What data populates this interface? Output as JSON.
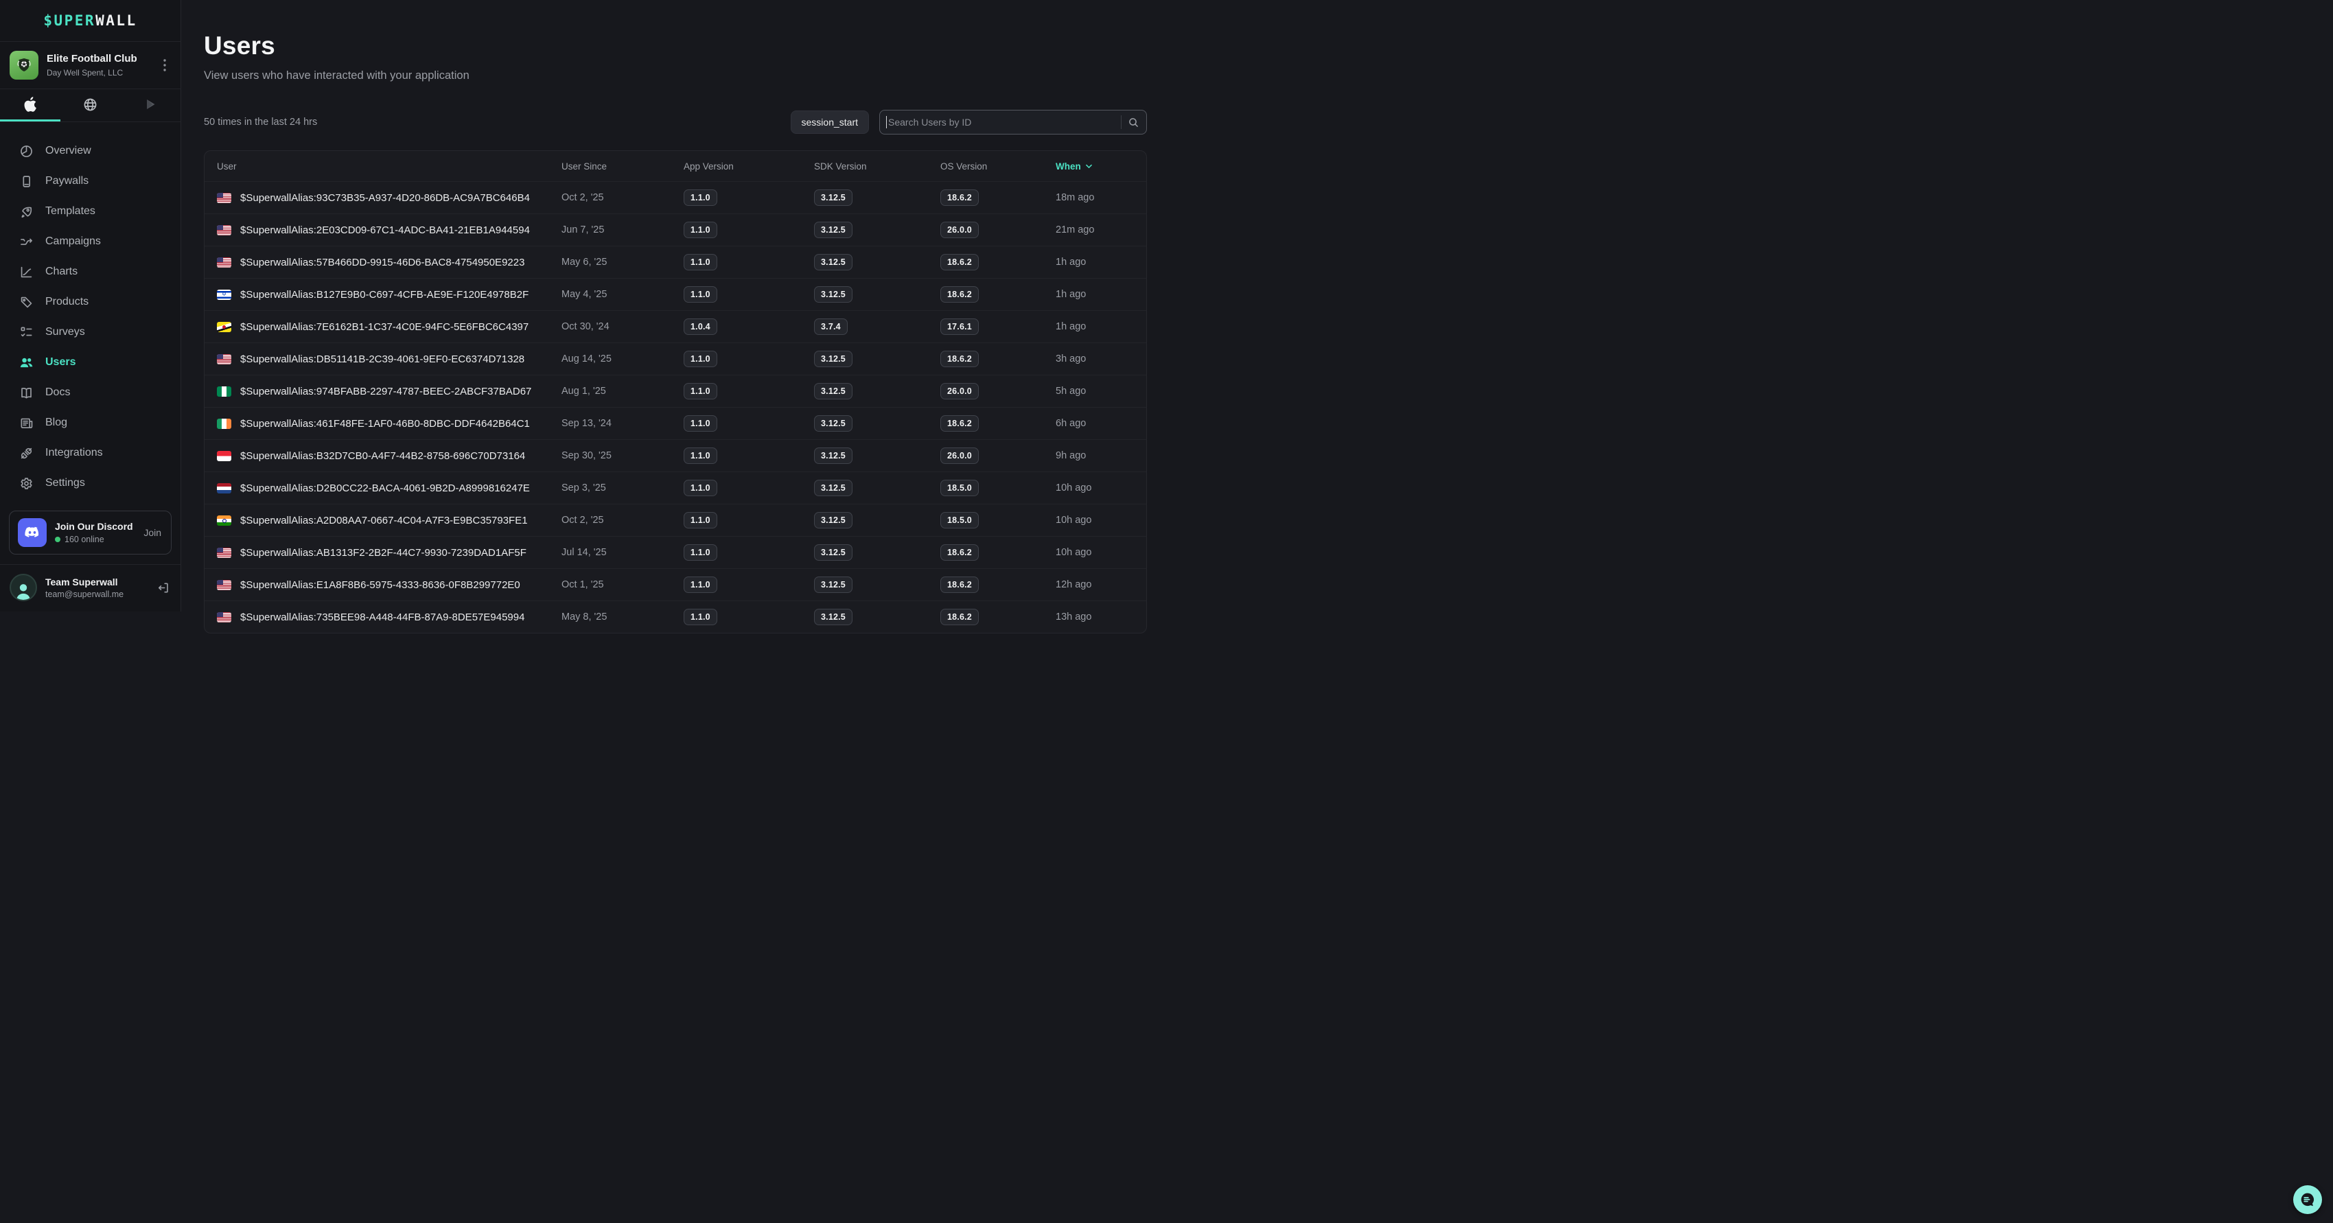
{
  "colors": {
    "accent": "#4be1c3",
    "discord": "#5865f2",
    "online_green": "#3ec776",
    "fab": "#8ceede",
    "background": "#17181d",
    "sidebar_background": "#141519"
  },
  "sidebar": {
    "logo": {
      "teal": "$UPER",
      "white": "WALL"
    },
    "workspace": {
      "name": "Elite Football Club",
      "org": "Day Well Spent, LLC"
    },
    "platform_tabs": [
      {
        "id": "apple",
        "active": true
      },
      {
        "id": "web",
        "active": false
      },
      {
        "id": "android",
        "active": false
      }
    ],
    "nav": [
      {
        "id": "overview",
        "label": "Overview",
        "active": false
      },
      {
        "id": "paywalls",
        "label": "Paywalls",
        "active": false
      },
      {
        "id": "templates",
        "label": "Templates",
        "active": false
      },
      {
        "id": "campaigns",
        "label": "Campaigns",
        "active": false
      },
      {
        "id": "charts",
        "label": "Charts",
        "active": false
      },
      {
        "id": "products",
        "label": "Products",
        "active": false
      },
      {
        "id": "surveys",
        "label": "Surveys",
        "active": false
      },
      {
        "id": "users",
        "label": "Users",
        "active": true
      },
      {
        "id": "docs",
        "label": "Docs",
        "active": false
      },
      {
        "id": "blog",
        "label": "Blog",
        "active": false
      },
      {
        "id": "integrations",
        "label": "Integrations",
        "active": false
      },
      {
        "id": "settings",
        "label": "Settings",
        "active": false
      }
    ],
    "discord": {
      "title": "Join Our Discord",
      "online": "160 online",
      "action": "Join"
    },
    "account": {
      "name": "Team Superwall",
      "email": "team@superwall.me"
    }
  },
  "main": {
    "title": "Users",
    "subtitle": "View users who have interacted with your application",
    "stats": "50 times in the last 24 hrs",
    "event_filter": "session_start",
    "search": {
      "placeholder": "Search Users by ID"
    },
    "table": {
      "columns": [
        "User",
        "User Since",
        "App Version",
        "SDK Version",
        "OS Version",
        "When"
      ],
      "sort_column": "When",
      "rows": [
        {
          "flag": "us",
          "id": "$SuperwallAlias:93C73B35-A937-4D20-86DB-AC9A7BC646B4",
          "since": "Oct 2, '25",
          "app": "1.1.0",
          "sdk": "3.12.5",
          "os": "18.6.2",
          "when": "18m ago"
        },
        {
          "flag": "us",
          "id": "$SuperwallAlias:2E03CD09-67C1-4ADC-BA41-21EB1A944594",
          "since": "Jun 7, '25",
          "app": "1.1.0",
          "sdk": "3.12.5",
          "os": "26.0.0",
          "when": "21m ago"
        },
        {
          "flag": "us",
          "id": "$SuperwallAlias:57B466DD-9915-46D6-BAC8-4754950E9223",
          "since": "May 6, '25",
          "app": "1.1.0",
          "sdk": "3.12.5",
          "os": "18.6.2",
          "when": "1h ago"
        },
        {
          "flag": "il",
          "id": "$SuperwallAlias:B127E9B0-C697-4CFB-AE9E-F120E4978B2F",
          "since": "May 4, '25",
          "app": "1.1.0",
          "sdk": "3.12.5",
          "os": "18.6.2",
          "when": "1h ago"
        },
        {
          "flag": "bn",
          "id": "$SuperwallAlias:7E6162B1-1C37-4C0E-94FC-5E6FBC6C4397",
          "since": "Oct 30, '24",
          "app": "1.0.4",
          "sdk": "3.7.4",
          "os": "17.6.1",
          "when": "1h ago"
        },
        {
          "flag": "us",
          "id": "$SuperwallAlias:DB51141B-2C39-4061-9EF0-EC6374D71328",
          "since": "Aug 14, '25",
          "app": "1.1.0",
          "sdk": "3.12.5",
          "os": "18.6.2",
          "when": "3h ago"
        },
        {
          "flag": "ng",
          "id": "$SuperwallAlias:974BFABB-2297-4787-BEEC-2ABCF37BAD67",
          "since": "Aug 1, '25",
          "app": "1.1.0",
          "sdk": "3.12.5",
          "os": "26.0.0",
          "when": "5h ago"
        },
        {
          "flag": "ie",
          "id": "$SuperwallAlias:461F48FE-1AF0-46B0-8DBC-DDF4642B64C1",
          "since": "Sep 13, '24",
          "app": "1.1.0",
          "sdk": "3.12.5",
          "os": "18.6.2",
          "when": "6h ago"
        },
        {
          "flag": "sg",
          "id": "$SuperwallAlias:B32D7CB0-A4F7-44B2-8758-696C70D73164",
          "since": "Sep 30, '25",
          "app": "1.1.0",
          "sdk": "3.12.5",
          "os": "26.0.0",
          "when": "9h ago"
        },
        {
          "flag": "nl",
          "id": "$SuperwallAlias:D2B0CC22-BACA-4061-9B2D-A8999816247E",
          "since": "Sep 3, '25",
          "app": "1.1.0",
          "sdk": "3.12.5",
          "os": "18.5.0",
          "when": "10h ago"
        },
        {
          "flag": "in",
          "id": "$SuperwallAlias:A2D08AA7-0667-4C04-A7F3-E9BC35793FE1",
          "since": "Oct 2, '25",
          "app": "1.1.0",
          "sdk": "3.12.5",
          "os": "18.5.0",
          "when": "10h ago"
        },
        {
          "flag": "us",
          "id": "$SuperwallAlias:AB1313F2-2B2F-44C7-9930-7239DAD1AF5F",
          "since": "Jul 14, '25",
          "app": "1.1.0",
          "sdk": "3.12.5",
          "os": "18.6.2",
          "when": "10h ago"
        },
        {
          "flag": "us",
          "id": "$SuperwallAlias:E1A8F8B6-5975-4333-8636-0F8B299772E0",
          "since": "Oct 1, '25",
          "app": "1.1.0",
          "sdk": "3.12.5",
          "os": "18.6.2",
          "when": "12h ago"
        },
        {
          "flag": "us",
          "id": "$SuperwallAlias:735BEE98-A448-44FB-87A9-8DE57E945994",
          "since": "May 8, '25",
          "app": "1.1.0",
          "sdk": "3.12.5",
          "os": "18.6.2",
          "when": "13h ago"
        }
      ]
    }
  }
}
